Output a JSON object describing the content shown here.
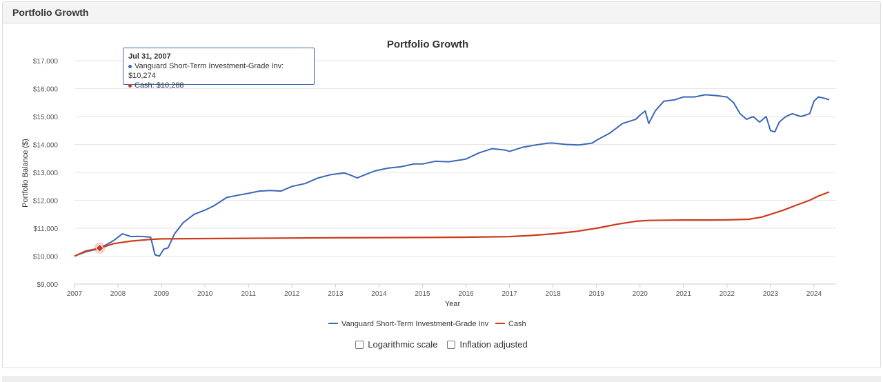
{
  "panel": {
    "title": "Portfolio Growth"
  },
  "colors": {
    "vanguard": "#3a66b8",
    "cash": "#cc3a1a",
    "grid": "#e6e6e6",
    "axis": "#cccccc"
  },
  "chart_data": {
    "type": "line",
    "title": "Portfolio Growth",
    "xlabel": "Year",
    "ylabel": "Portfolio Balance ($)",
    "xlim": [
      2007,
      2024.4
    ],
    "ylim": [
      9000,
      17000
    ],
    "x_ticks": [
      "2007",
      "2008",
      "2009",
      "2010",
      "2011",
      "2012",
      "2013",
      "2014",
      "2015",
      "2016",
      "2017",
      "2018",
      "2019",
      "2020",
      "2021",
      "2022",
      "2023",
      "2024"
    ],
    "y_ticks": [
      "$9,000",
      "$10,000",
      "$11,000",
      "$12,000",
      "$13,000",
      "$14,000",
      "$15,000",
      "$16,000",
      "$17,000"
    ],
    "y_tick_values": [
      9000,
      10000,
      11000,
      12000,
      13000,
      14000,
      15000,
      16000,
      17000
    ],
    "grid": true,
    "legend": "bottom-center",
    "series": [
      {
        "name": "Vanguard Short-Term Investment-Grade Inv",
        "x": [
          2007.0,
          2007.25,
          2007.58,
          2007.9,
          2008.1,
          2008.3,
          2008.45,
          2008.6,
          2008.75,
          2008.85,
          2008.95,
          2009.05,
          2009.15,
          2009.3,
          2009.5,
          2009.75,
          2010.0,
          2010.2,
          2010.5,
          2010.75,
          2011.0,
          2011.25,
          2011.5,
          2011.75,
          2012.0,
          2012.3,
          2012.6,
          2012.9,
          2013.2,
          2013.35,
          2013.5,
          2013.65,
          2013.9,
          2014.2,
          2014.5,
          2014.8,
          2015.0,
          2015.3,
          2015.6,
          2015.9,
          2016.0,
          2016.3,
          2016.6,
          2016.9,
          2017.0,
          2017.3,
          2017.6,
          2017.9,
          2018.0,
          2018.3,
          2018.6,
          2018.9,
          2019.0,
          2019.3,
          2019.6,
          2019.9,
          2020.0,
          2020.12,
          2020.2,
          2020.35,
          2020.55,
          2020.8,
          2021.0,
          2021.25,
          2021.5,
          2021.75,
          2022.0,
          2022.15,
          2022.3,
          2022.45,
          2022.6,
          2022.75,
          2022.9,
          2023.0,
          2023.1,
          2023.2,
          2023.35,
          2023.5,
          2023.7,
          2023.9,
          2024.0,
          2024.1,
          2024.25,
          2024.35
        ],
        "y": [
          10000,
          10150,
          10274,
          10560,
          10800,
          10700,
          10710,
          10700,
          10680,
          10050,
          10000,
          10250,
          10300,
          10800,
          11200,
          11500,
          11650,
          11800,
          12100,
          12180,
          12250,
          12330,
          12350,
          12330,
          12500,
          12600,
          12800,
          12920,
          12980,
          12900,
          12800,
          12900,
          13050,
          13150,
          13200,
          13300,
          13300,
          13400,
          13380,
          13450,
          13480,
          13700,
          13850,
          13800,
          13750,
          13900,
          13980,
          14050,
          14050,
          14000,
          13980,
          14050,
          14150,
          14400,
          14750,
          14900,
          15050,
          15200,
          14750,
          15200,
          15550,
          15600,
          15700,
          15700,
          15780,
          15750,
          15700,
          15500,
          15100,
          14900,
          15000,
          14800,
          15000,
          14500,
          14450,
          14800,
          15000,
          15100,
          15000,
          15100,
          15550,
          15700,
          15650,
          15600
        ]
      },
      {
        "name": "Cash",
        "x": [
          2007.0,
          2007.25,
          2007.58,
          2007.9,
          2008.3,
          2008.75,
          2009.0,
          2010.0,
          2011.0,
          2012.0,
          2013.0,
          2014.0,
          2015.0,
          2016.0,
          2017.0,
          2017.5,
          2018.0,
          2018.5,
          2019.0,
          2019.5,
          2019.9,
          2020.2,
          2020.6,
          2021.0,
          2021.5,
          2022.0,
          2022.5,
          2022.8,
          2023.0,
          2023.3,
          2023.6,
          2023.9,
          2024.1,
          2024.35
        ],
        "y": [
          10000,
          10180,
          10288,
          10450,
          10540,
          10600,
          10620,
          10630,
          10640,
          10650,
          10660,
          10665,
          10670,
          10680,
          10700,
          10740,
          10800,
          10880,
          11000,
          11150,
          11250,
          11280,
          11290,
          11295,
          11295,
          11300,
          11320,
          11400,
          11500,
          11650,
          11830,
          12000,
          12150,
          12300
        ]
      }
    ],
    "tooltip": {
      "date": "Jul 31, 2007",
      "lines": [
        "Vanguard Short-Term Investment-Grade Inv: $10,274",
        "Cash: $10,288"
      ],
      "x": 2007.58
    }
  },
  "controls": {
    "log_label": "Logarithmic scale",
    "inflation_label": "Inflation adjusted"
  }
}
